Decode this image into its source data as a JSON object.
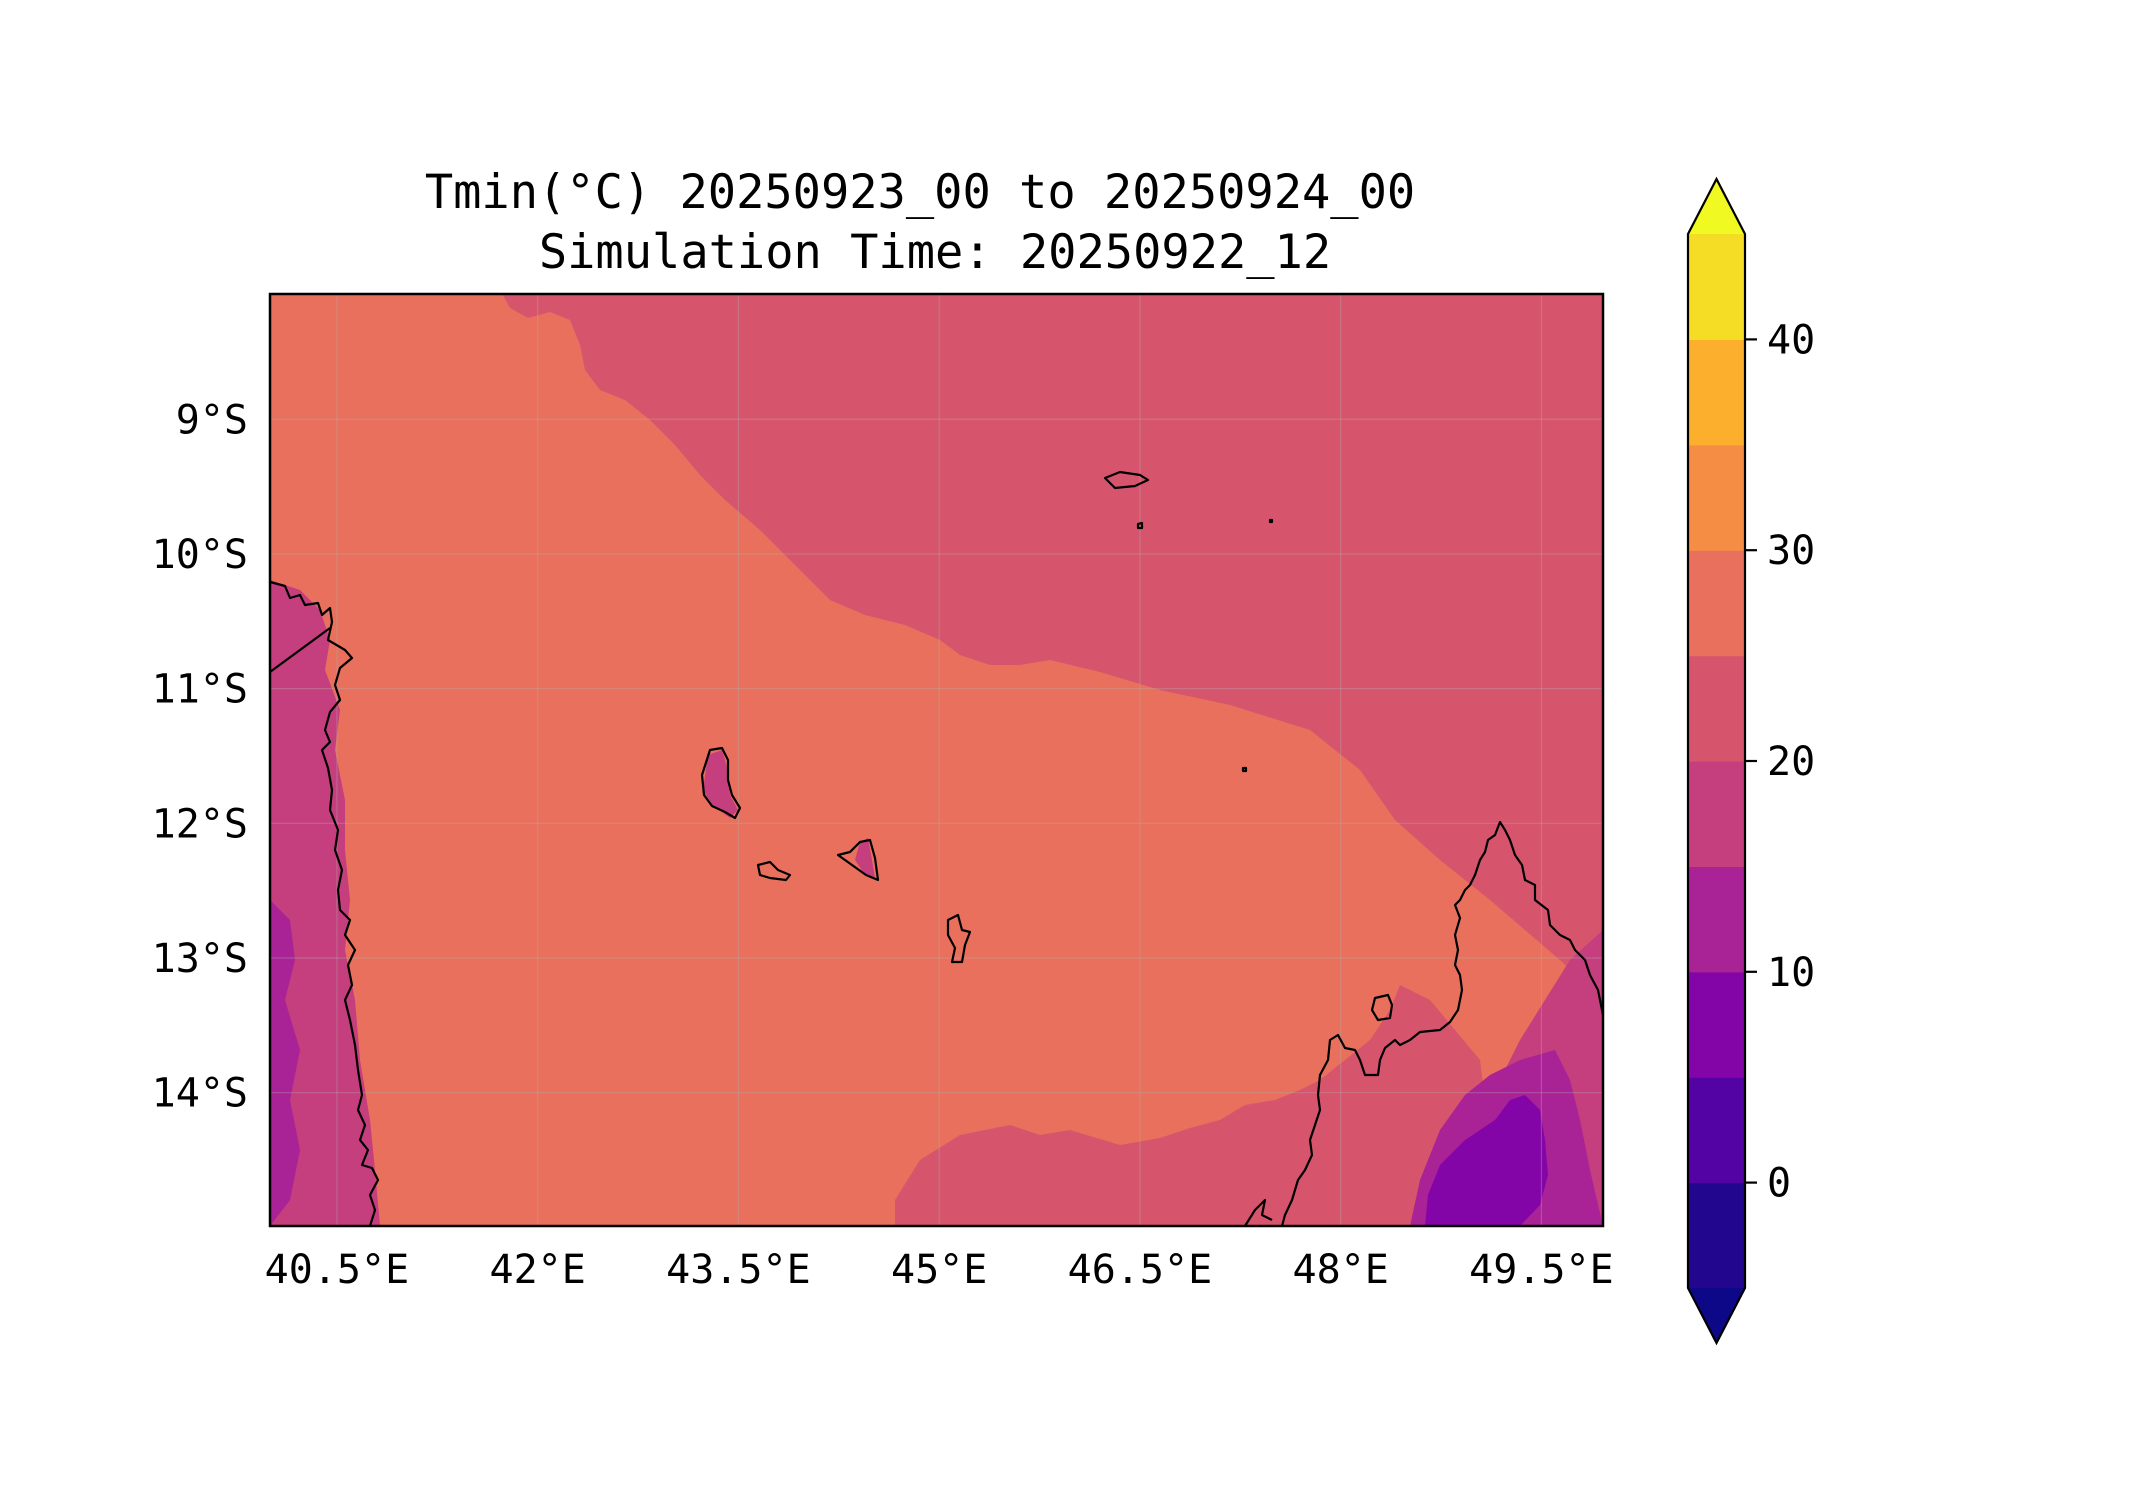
{
  "title": {
    "line1": "Tmin(°C) 20250923_00 to 20250924_00",
    "line2": "Simulation Time: 20250922_12"
  },
  "map": {
    "lon_range": [
      40.0,
      49.96
    ],
    "lat_range": [
      -14.99,
      -8.07
    ],
    "x_ticks": [
      {
        "value": 40.5,
        "label": "40.5°E"
      },
      {
        "value": 42.0,
        "label": "42°E"
      },
      {
        "value": 43.5,
        "label": "43.5°E"
      },
      {
        "value": 45.0,
        "label": "45°E"
      },
      {
        "value": 46.5,
        "label": "46.5°E"
      },
      {
        "value": 48.0,
        "label": "48°E"
      },
      {
        "value": 49.5,
        "label": "49.5°E"
      }
    ],
    "y_ticks": [
      {
        "value": -9,
        "label": "9°S"
      },
      {
        "value": -10,
        "label": "10°S"
      },
      {
        "value": -11,
        "label": "11°S"
      },
      {
        "value": -12,
        "label": "12°S"
      },
      {
        "value": -13,
        "label": "13°S"
      },
      {
        "value": -14,
        "label": "14°S"
      }
    ],
    "gridlines": true,
    "zones": {
      "ocean_north": "20-25",
      "ocean_south": "25-30",
      "coastal_land": "15-20",
      "madagascar_highland": "10-15",
      "madagascar_core": "5-10"
    }
  },
  "colorbar": {
    "levels": [
      -5,
      0,
      5,
      10,
      15,
      20,
      25,
      30,
      35,
      40,
      45
    ],
    "colors": [
      "#22068e",
      "#5302a3",
      "#8405a7",
      "#a92296",
      "#c53e7e",
      "#d6556d",
      "#e8705c",
      "#f58d44",
      "#fcaf2d",
      "#f5dd25"
    ],
    "under_color": "#0d0887",
    "over_color": "#f0f921",
    "extend": "both",
    "ticks": [
      {
        "value": 0,
        "label": "0"
      },
      {
        "value": 10,
        "label": "10"
      },
      {
        "value": 20,
        "label": "20"
      },
      {
        "value": 30,
        "label": "30"
      },
      {
        "value": 40,
        "label": "40"
      }
    ]
  }
}
